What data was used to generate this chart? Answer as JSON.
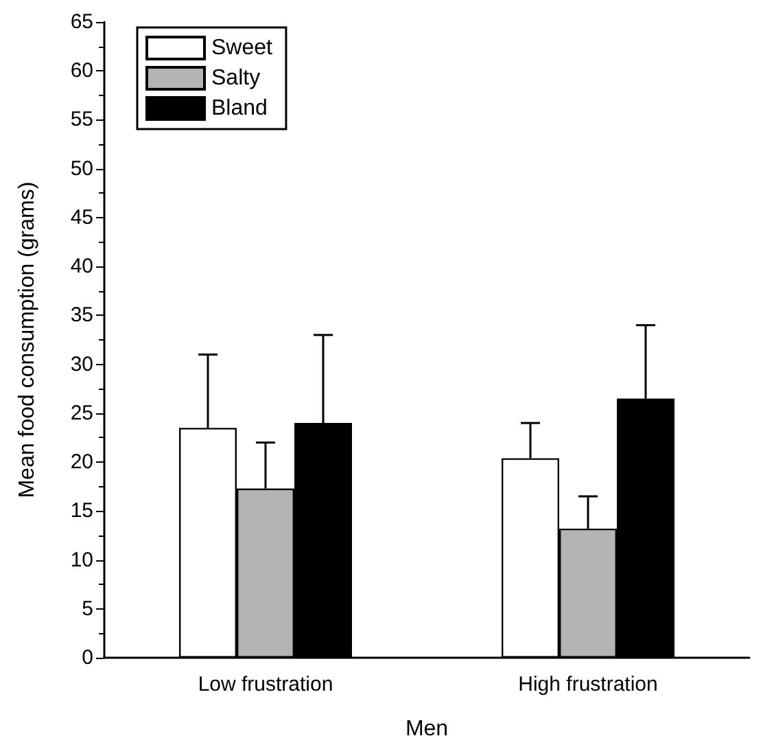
{
  "chart_data": {
    "type": "bar",
    "xlabel": "Men",
    "ylabel": "Mean food consumption (grams)",
    "categories": [
      "Low frustration",
      "High frustration"
    ],
    "series": [
      {
        "name": "Sweet",
        "color": "#ffffff",
        "values": [
          23.5,
          20.4
        ],
        "errors": [
          [
            23.5,
            31
          ],
          [
            20.4,
            24
          ]
        ]
      },
      {
        "name": "Salty",
        "color": "#b4b4b4",
        "values": [
          17.3,
          13.2
        ],
        "errors": [
          [
            17.3,
            22
          ],
          [
            13.2,
            16.5
          ]
        ]
      },
      {
        "name": "Bland",
        "color": "#000000",
        "values": [
          24,
          26.5
        ],
        "errors": [
          [
            24,
            33
          ],
          [
            26.5,
            34
          ]
        ]
      }
    ],
    "ylim": [
      0,
      65
    ],
    "yticks": [
      0,
      5,
      10,
      15,
      20,
      25,
      30,
      35,
      40,
      45,
      50,
      55,
      60,
      65
    ],
    "grid": false,
    "legend": "top left"
  }
}
